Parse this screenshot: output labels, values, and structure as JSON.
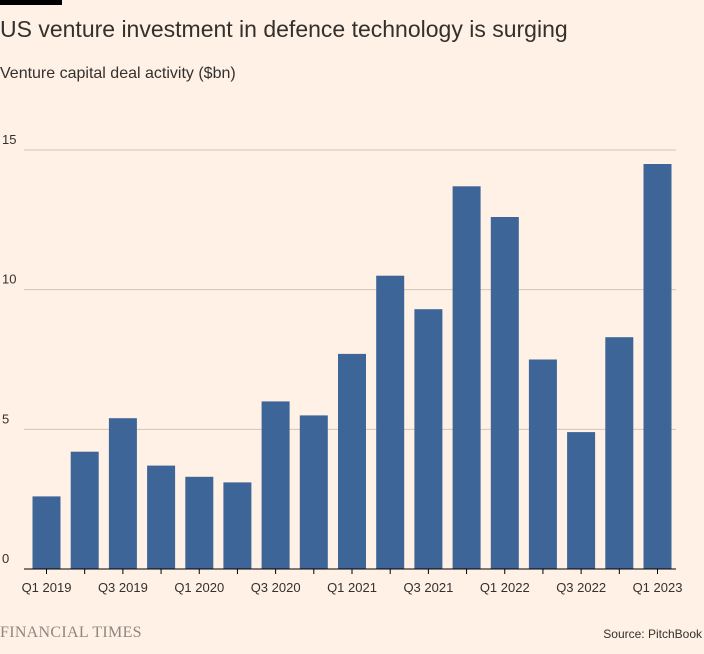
{
  "chart_data": {
    "type": "bar",
    "title": "US venture investment in defence technology is surging",
    "subtitle": "Venture capital deal activity ($bn)",
    "categories": [
      "Q1 2019",
      "Q2 2019",
      "Q3 2019",
      "Q4 2019",
      "Q1 2020",
      "Q2 2020",
      "Q3 2020",
      "Q4 2020",
      "Q1 2021",
      "Q2 2021",
      "Q3 2021",
      "Q4 2021",
      "Q1 2022",
      "Q2 2022",
      "Q3 2022",
      "Q4 2022",
      "Q1 2023"
    ],
    "x_tick_labels": [
      "Q1 2019",
      "Q3 2019",
      "Q1 2020",
      "Q3 2020",
      "Q1 2021",
      "Q3 2021",
      "Q1 2022",
      "Q3 2022",
      "Q1 2023"
    ],
    "values": [
      2.6,
      4.2,
      5.4,
      3.7,
      3.3,
      3.1,
      6.0,
      5.5,
      7.7,
      10.5,
      9.3,
      13.7,
      12.6,
      7.5,
      4.9,
      8.3,
      14.5
    ],
    "ylim": [
      0,
      15
    ],
    "yticks": [
      0,
      5,
      10,
      15
    ],
    "xlabel": "",
    "ylabel": "",
    "grid": true,
    "bar_color": "#3D6598"
  },
  "footer": {
    "logo": "FINANCIAL TIMES",
    "source": "Source: PitchBook"
  }
}
